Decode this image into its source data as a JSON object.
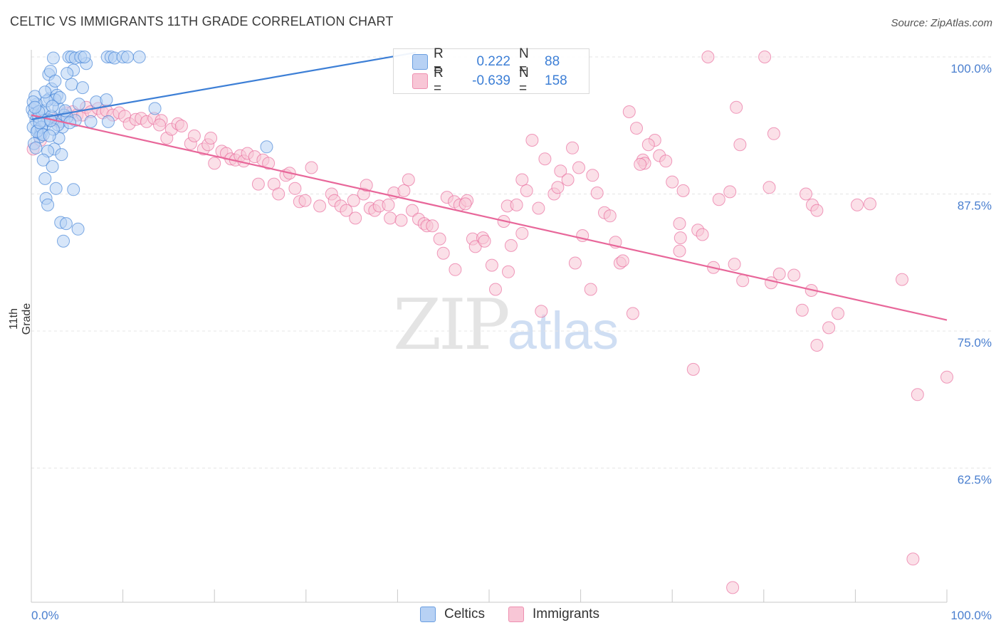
{
  "title": "CELTIC VS IMMIGRANTS 11TH GRADE CORRELATION CHART",
  "source": "Source: ZipAtlas.com",
  "watermark": {
    "zip": "ZIP",
    "atlas": "atlas"
  },
  "legend_top": [
    {
      "r_label": "R =",
      "r_value": "0.222",
      "n_label": "N =",
      "n_value": "88",
      "color": "#6a9ee0",
      "fill": "#b7d1f4"
    },
    {
      "r_label": "R =",
      "r_value": "-0.639",
      "n_label": "N =",
      "n_value": "158",
      "color": "#ee8fb0",
      "fill": "#f8c6d6"
    }
  ],
  "legend_bottom": [
    {
      "label": "Celtics",
      "fill": "#b7d1f4",
      "color": "#6a9ee0"
    },
    {
      "label": "Immigrants",
      "fill": "#f8c6d6",
      "color": "#ee8fb0"
    }
  ],
  "chart_data": {
    "type": "scatter",
    "title": "CELTIC VS IMMIGRANTS 11TH GRADE CORRELATION CHART",
    "xlabel": "",
    "ylabel": "11th Grade",
    "xlim": [
      0,
      100
    ],
    "ylim": [
      50.5,
      100.5
    ],
    "x_tick_labels": [
      "0.0%",
      "100.0%"
    ],
    "y_ticks": [
      62.5,
      75.0,
      87.5,
      100.0
    ],
    "y_tick_labels": [
      "62.5%",
      "75.0%",
      "87.5%",
      "100.0%"
    ],
    "grid": true,
    "series": [
      {
        "name": "Celtics",
        "color": "#3d7fd6",
        "fill": "#b7d1f4",
        "trend": {
          "x": [
            0,
            42
          ],
          "y": [
            94.3,
            100.4
          ]
        },
        "points": [
          [
            0.1,
            95.2
          ],
          [
            0.3,
            94.8
          ],
          [
            0.5,
            94.2
          ],
          [
            0.2,
            93.6
          ],
          [
            0.6,
            95.7
          ],
          [
            0.8,
            94.5
          ],
          [
            1.0,
            93.1
          ],
          [
            1.2,
            94.9
          ],
          [
            0.4,
            96.4
          ],
          [
            1.4,
            95.1
          ],
          [
            1.6,
            93.9
          ],
          [
            1.8,
            94.3
          ],
          [
            2.0,
            96.2
          ],
          [
            2.2,
            97.1
          ],
          [
            1.9,
            98.4
          ],
          [
            2.1,
            98.7
          ],
          [
            2.4,
            99.9
          ],
          [
            2.6,
            97.8
          ],
          [
            2.8,
            96.5
          ],
          [
            3.0,
            95.3
          ],
          [
            3.2,
            94.1
          ],
          [
            3.4,
            93.6
          ],
          [
            3.0,
            92.6
          ],
          [
            2.5,
            91.6
          ],
          [
            1.8,
            91.4
          ],
          [
            3.3,
            91.1
          ],
          [
            1.3,
            90.6
          ],
          [
            2.3,
            90.0
          ],
          [
            1.5,
            88.9
          ],
          [
            2.7,
            88.0
          ],
          [
            1.6,
            87.1
          ],
          [
            1.8,
            86.5
          ],
          [
            3.2,
            84.9
          ],
          [
            3.8,
            84.8
          ],
          [
            5.1,
            84.3
          ],
          [
            3.5,
            83.2
          ],
          [
            4.6,
            87.9
          ],
          [
            4.8,
            94.2
          ],
          [
            5.2,
            95.7
          ],
          [
            4.4,
            97.5
          ],
          [
            5.6,
            97.2
          ],
          [
            6.0,
            99.4
          ],
          [
            4.6,
            98.8
          ],
          [
            3.9,
            98.5
          ],
          [
            4.1,
            100.0
          ],
          [
            4.4,
            100.0
          ],
          [
            4.8,
            99.9
          ],
          [
            5.4,
            100.0
          ],
          [
            5.8,
            100.0
          ],
          [
            8.3,
            100.0
          ],
          [
            8.7,
            100.0
          ],
          [
            9.1,
            99.9
          ],
          [
            10.0,
            100.0
          ],
          [
            10.5,
            100.0
          ],
          [
            11.8,
            100.0
          ],
          [
            7.1,
            95.9
          ],
          [
            8.2,
            96.1
          ],
          [
            8.4,
            94.1
          ],
          [
            6.5,
            94.1
          ],
          [
            13.5,
            95.3
          ],
          [
            25.7,
            91.8
          ],
          [
            0.7,
            93.3
          ],
          [
            1.1,
            93.0
          ],
          [
            2.9,
            93.8
          ],
          [
            3.6,
            94.7
          ],
          [
            2.2,
            94.6
          ],
          [
            1.4,
            94.2
          ],
          [
            0.9,
            92.7
          ],
          [
            0.3,
            92.1
          ],
          [
            0.5,
            91.7
          ],
          [
            2.6,
            96.1
          ],
          [
            3.1,
            96.3
          ],
          [
            1.7,
            96.0
          ],
          [
            0.2,
            95.9
          ],
          [
            0.8,
            95.0
          ],
          [
            1.1,
            93.6
          ],
          [
            2.4,
            93.4
          ],
          [
            3.9,
            94.5
          ],
          [
            4.2,
            94.0
          ],
          [
            0.6,
            93.2
          ],
          [
            1.3,
            92.9
          ],
          [
            2.0,
            92.8
          ],
          [
            0.4,
            95.4
          ],
          [
            1.5,
            96.8
          ],
          [
            2.3,
            95.5
          ],
          [
            3.7,
            95.1
          ],
          [
            0.9,
            94.0
          ],
          [
            2.1,
            94.2
          ]
        ]
      },
      {
        "name": "Immigrants",
        "color": "#e8679a",
        "fill": "#f8c6d6",
        "trend": {
          "x": [
            0,
            100
          ],
          "y": [
            94.7,
            76.0
          ]
        },
        "points": [
          [
            0.2,
            91.6
          ],
          [
            1.0,
            92.4
          ],
          [
            2.6,
            94.3
          ],
          [
            3.0,
            94.1
          ],
          [
            3.8,
            94.9
          ],
          [
            4.5,
            95.0
          ],
          [
            5.0,
            94.7
          ],
          [
            5.6,
            94.7
          ],
          [
            6.0,
            95.4
          ],
          [
            6.5,
            95.0
          ],
          [
            7.3,
            95.3
          ],
          [
            7.8,
            94.9
          ],
          [
            8.2,
            95.1
          ],
          [
            8.9,
            94.7
          ],
          [
            9.6,
            94.9
          ],
          [
            10.2,
            94.6
          ],
          [
            10.7,
            93.9
          ],
          [
            11.4,
            94.3
          ],
          [
            12.0,
            94.4
          ],
          [
            12.6,
            94.1
          ],
          [
            13.4,
            94.4
          ],
          [
            14.2,
            94.2
          ],
          [
            14.0,
            93.8
          ],
          [
            14.8,
            92.6
          ],
          [
            15.3,
            93.4
          ],
          [
            16.0,
            93.9
          ],
          [
            16.4,
            93.7
          ],
          [
            17.4,
            92.1
          ],
          [
            17.8,
            92.8
          ],
          [
            18.8,
            91.6
          ],
          [
            19.3,
            92.0
          ],
          [
            20.0,
            90.3
          ],
          [
            19.6,
            92.6
          ],
          [
            20.8,
            91.4
          ],
          [
            21.3,
            91.2
          ],
          [
            21.8,
            90.7
          ],
          [
            22.3,
            90.6
          ],
          [
            22.8,
            91.0
          ],
          [
            23.2,
            90.5
          ],
          [
            23.6,
            91.2
          ],
          [
            24.4,
            90.9
          ],
          [
            25.3,
            90.6
          ],
          [
            24.8,
            88.4
          ],
          [
            25.9,
            90.3
          ],
          [
            26.5,
            88.4
          ],
          [
            27.0,
            87.5
          ],
          [
            27.8,
            89.2
          ],
          [
            28.2,
            89.4
          ],
          [
            28.8,
            88.0
          ],
          [
            29.3,
            86.8
          ],
          [
            29.9,
            86.9
          ],
          [
            30.6,
            89.9
          ],
          [
            31.5,
            86.4
          ],
          [
            32.8,
            87.5
          ],
          [
            33.1,
            86.9
          ],
          [
            33.8,
            86.4
          ],
          [
            34.4,
            86.0
          ],
          [
            35.2,
            86.9
          ],
          [
            35.4,
            85.3
          ],
          [
            36.3,
            87.5
          ],
          [
            36.6,
            88.3
          ],
          [
            37.0,
            86.2
          ],
          [
            37.5,
            86.0
          ],
          [
            38.0,
            86.4
          ],
          [
            39.0,
            86.5
          ],
          [
            39.2,
            85.3
          ],
          [
            39.6,
            87.6
          ],
          [
            40.4,
            85.1
          ],
          [
            40.7,
            87.8
          ],
          [
            41.2,
            88.8
          ],
          [
            41.6,
            86.0
          ],
          [
            42.3,
            85.2
          ],
          [
            42.9,
            84.8
          ],
          [
            43.2,
            84.6
          ],
          [
            43.8,
            84.6
          ],
          [
            44.6,
            83.4
          ],
          [
            45.0,
            82.1
          ],
          [
            45.4,
            87.2
          ],
          [
            46.2,
            86.8
          ],
          [
            46.3,
            80.6
          ],
          [
            46.8,
            86.5
          ],
          [
            47.6,
            86.9
          ],
          [
            47.4,
            86.6
          ],
          [
            48.2,
            83.4
          ],
          [
            48.5,
            82.7
          ],
          [
            49.3,
            83.5
          ],
          [
            49.5,
            83.2
          ],
          [
            50.3,
            81.0
          ],
          [
            50.7,
            78.8
          ],
          [
            51.6,
            85.0
          ],
          [
            52.0,
            86.4
          ],
          [
            52.4,
            82.8
          ],
          [
            53.0,
            86.5
          ],
          [
            53.6,
            88.8
          ],
          [
            53.6,
            83.9
          ],
          [
            54.1,
            87.8
          ],
          [
            54.7,
            92.4
          ],
          [
            55.4,
            86.2
          ],
          [
            55.7,
            76.8
          ],
          [
            56.1,
            90.7
          ],
          [
            57.1,
            87.5
          ],
          [
            57.5,
            88.1
          ],
          [
            57.8,
            89.6
          ],
          [
            58.6,
            88.8
          ],
          [
            59.1,
            91.7
          ],
          [
            59.8,
            89.9
          ],
          [
            59.4,
            81.2
          ],
          [
            60.2,
            83.7
          ],
          [
            61.1,
            78.8
          ],
          [
            61.3,
            89.2
          ],
          [
            61.8,
            87.6
          ],
          [
            62.6,
            85.8
          ],
          [
            63.2,
            85.5
          ],
          [
            63.8,
            83.1
          ],
          [
            64.3,
            81.2
          ],
          [
            64.6,
            81.4
          ],
          [
            65.3,
            95.0
          ],
          [
            65.7,
            76.6
          ],
          [
            66.1,
            93.5
          ],
          [
            66.8,
            90.6
          ],
          [
            67.0,
            90.3
          ],
          [
            68.1,
            92.4
          ],
          [
            68.6,
            91.0
          ],
          [
            67.4,
            92.0
          ],
          [
            69.3,
            90.5
          ],
          [
            70.0,
            88.6
          ],
          [
            70.8,
            84.8
          ],
          [
            70.9,
            83.5
          ],
          [
            70.8,
            82.3
          ],
          [
            71.2,
            87.8
          ],
          [
            72.8,
            84.2
          ],
          [
            73.3,
            83.8
          ],
          [
            73.9,
            100.0
          ],
          [
            74.5,
            80.8
          ],
          [
            72.3,
            71.5
          ],
          [
            75.1,
            87.0
          ],
          [
            76.3,
            87.7
          ],
          [
            77.4,
            92.0
          ],
          [
            76.8,
            81.1
          ],
          [
            77.0,
            95.4
          ],
          [
            77.7,
            79.6
          ],
          [
            80.1,
            100.0
          ],
          [
            80.6,
            88.1
          ],
          [
            81.1,
            93.0
          ],
          [
            80.8,
            79.4
          ],
          [
            81.7,
            80.2
          ],
          [
            83.3,
            80.1
          ],
          [
            84.2,
            76.9
          ],
          [
            84.6,
            87.5
          ],
          [
            85.3,
            86.5
          ],
          [
            85.8,
            86.0
          ],
          [
            85.2,
            78.7
          ],
          [
            85.8,
            73.7
          ],
          [
            87.1,
            75.3
          ],
          [
            88.1,
            76.6
          ],
          [
            90.2,
            86.5
          ],
          [
            91.6,
            86.6
          ],
          [
            96.8,
            69.2
          ],
          [
            100.0,
            70.8
          ],
          [
            95.1,
            79.7
          ],
          [
            96.3,
            54.2
          ],
          [
            76.6,
            51.6
          ],
          [
            66.5,
            90.2
          ],
          [
            52.1,
            80.4
          ]
        ]
      }
    ]
  }
}
